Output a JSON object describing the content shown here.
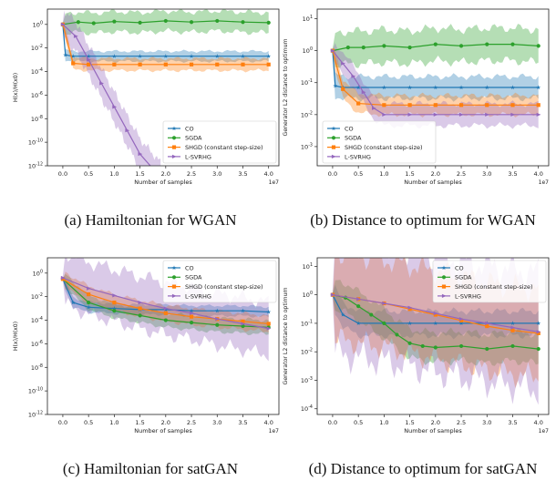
{
  "charts": {
    "a": {
      "caption": "(a) Hamiltonian for WGAN"
    },
    "b": {
      "caption": "(b) Distance to optimum for WGAN"
    },
    "c": {
      "caption": "(c) Hamiltonian for satGAN"
    },
    "d": {
      "caption": "(d) Distance to optimum for satGAN"
    }
  },
  "chart_data": [
    {
      "id": "a",
      "type": "line",
      "scale_y": "log",
      "xlabel": "Number of samples",
      "x_multiplier": "1e7",
      "ylabel": "H(x)/H(x0)",
      "xlim": [
        -0.3,
        4.2
      ],
      "ylim_exp": [
        -12,
        1.3
      ],
      "xticks": [
        "0.0",
        "0.5",
        "1.0",
        "1.5",
        "2.0",
        "2.5",
        "3.0",
        "3.5",
        "4.0"
      ],
      "yticks": [
        "10^0",
        "10^-2",
        "10^-4",
        "10^-6",
        "10^-8",
        "10^-10",
        "10^-12"
      ],
      "legend_position": "lower-right",
      "series": [
        {
          "name": "CO",
          "color": "#1f77b4",
          "marker": "star",
          "x": [
            0,
            0.05,
            0.2,
            0.5,
            1,
            1.5,
            2,
            2.5,
            3,
            3.5,
            4
          ],
          "y_exp": [
            0,
            -2.6,
            -2.7,
            -2.7,
            -2.7,
            -2.7,
            -2.7,
            -2.7,
            -2.7,
            -2.7,
            -2.7
          ],
          "band": 0.5
        },
        {
          "name": "SGDA",
          "color": "#2ca02c",
          "marker": "circle",
          "x": [
            0,
            0.3,
            0.6,
            1,
            1.5,
            2,
            2.5,
            3,
            3.5,
            4
          ],
          "y_exp": [
            0,
            0.2,
            0.1,
            0.25,
            0.15,
            0.3,
            0.2,
            0.3,
            0.2,
            0.15
          ],
          "band": 1.0
        },
        {
          "name": "SHGD (constant step-size)",
          "color": "#ff7f0e",
          "marker": "square",
          "x": [
            0,
            0.2,
            0.5,
            1,
            1.5,
            2,
            2.5,
            3,
            3.5,
            4
          ],
          "y_exp": [
            0,
            -3.3,
            -3.4,
            -3.4,
            -3.4,
            -3.4,
            -3.4,
            -3.4,
            -3.4,
            -3.4
          ],
          "band": 0.6
        },
        {
          "name": "L-SVRHG",
          "color": "#9467bd",
          "marker": "tri",
          "x": [
            0,
            0.25,
            0.5,
            0.75,
            1,
            1.25,
            1.5,
            1.9
          ],
          "y_exp": [
            0,
            -1,
            -3,
            -5,
            -7,
            -9,
            -11,
            -13
          ],
          "band": 1.5
        }
      ]
    },
    {
      "id": "b",
      "type": "line",
      "scale_y": "log",
      "xlabel": "Number of samples",
      "x_multiplier": "1e7",
      "ylabel": "Generator L2 distance to optimum",
      "xlim": [
        -0.3,
        4.2
      ],
      "ylim_exp": [
        -3.6,
        1.3
      ],
      "xticks": [
        "0.0",
        "0.5",
        "1.0",
        "1.5",
        "2.0",
        "2.5",
        "3.0",
        "3.5",
        "4.0"
      ],
      "yticks": [
        "10^1",
        "10^0",
        "10^-1",
        "10^-2",
        "10^-3"
      ],
      "legend_position": "lower-left",
      "series": [
        {
          "name": "CO",
          "color": "#1f77b4",
          "marker": "star",
          "x": [
            0,
            0.05,
            0.2,
            0.5,
            1,
            1.5,
            2,
            2.5,
            3,
            3.5,
            4
          ],
          "y_exp": [
            0,
            -1.1,
            -1.15,
            -1.15,
            -1.15,
            -1.15,
            -1.15,
            -1.15,
            -1.15,
            -1.15,
            -1.15
          ],
          "band": 0.4
        },
        {
          "name": "SGDA",
          "color": "#2ca02c",
          "marker": "circle",
          "x": [
            0,
            0.3,
            0.6,
            1,
            1.5,
            2,
            2.5,
            3,
            3.5,
            4
          ],
          "y_exp": [
            0,
            0.1,
            0.1,
            0.15,
            0.1,
            0.2,
            0.15,
            0.2,
            0.2,
            0.15
          ],
          "band": 0.6
        },
        {
          "name": "SHGD (constant step-size)",
          "color": "#ff7f0e",
          "marker": "square",
          "x": [
            0,
            0.2,
            0.5,
            1,
            1.5,
            2,
            2.5,
            3,
            3.5,
            4
          ],
          "y_exp": [
            0,
            -1.2,
            -1.65,
            -1.7,
            -1.7,
            -1.7,
            -1.7,
            -1.7,
            -1.7,
            -1.7
          ],
          "band": 0.35
        },
        {
          "name": "L-SVRHG",
          "color": "#9467bd",
          "marker": "tri",
          "x": [
            0,
            0.2,
            0.4,
            0.6,
            0.8,
            1,
            1.5,
            2,
            2.5,
            3,
            3.5,
            4
          ],
          "y_exp": [
            0,
            -0.4,
            -0.8,
            -1.3,
            -1.8,
            -2,
            -2,
            -2,
            -2,
            -2,
            -2,
            -2
          ],
          "band": 0.4
        }
      ]
    },
    {
      "id": "c",
      "type": "line",
      "scale_y": "log",
      "xlabel": "Number of samples",
      "x_multiplier": "1e7",
      "ylabel": "H(x)/H(x0)",
      "xlim": [
        -0.3,
        4.2
      ],
      "ylim_exp": [
        -12,
        1.3
      ],
      "xticks": [
        "0.0",
        "0.5",
        "1.0",
        "1.5",
        "2.0",
        "2.5",
        "3.0",
        "3.5",
        "4.0"
      ],
      "yticks": [
        "10^0",
        "10^-2",
        "10^-4",
        "10^-6",
        "10^-8",
        "10^-10",
        "10^-12"
      ],
      "legend_position": "upper-right",
      "series": [
        {
          "name": "CO",
          "color": "#1f77b4",
          "marker": "star",
          "x": [
            0,
            0.2,
            0.5,
            1,
            1.5,
            2,
            2.5,
            3,
            3.5,
            4
          ],
          "y_exp": [
            -0.5,
            -2.5,
            -2.9,
            -3.0,
            -3.1,
            -3.1,
            -3.2,
            -3.2,
            -3.2,
            -3.3
          ],
          "band": 0.5
        },
        {
          "name": "SGDA",
          "color": "#2ca02c",
          "marker": "circle",
          "x": [
            0,
            0.5,
            1,
            1.5,
            2,
            2.5,
            3,
            3.5,
            4
          ],
          "y_exp": [
            -0.5,
            -2.5,
            -3.2,
            -3.6,
            -4.0,
            -4.2,
            -4.4,
            -4.5,
            -4.6
          ],
          "band": 0.7
        },
        {
          "name": "SHGD (constant step-size)",
          "color": "#ff7f0e",
          "marker": "square",
          "x": [
            0,
            0.5,
            1,
            1.5,
            2,
            2.5,
            3,
            3.5,
            4
          ],
          "y_exp": [
            -0.5,
            -1.8,
            -2.5,
            -3.0,
            -3.4,
            -3.7,
            -3.9,
            -4.1,
            -4.3
          ],
          "band": 0.8
        },
        {
          "name": "L-SVRHG",
          "color": "#9467bd",
          "marker": "tri",
          "x": [
            0,
            0.5,
            1,
            1.5,
            2,
            2.5,
            3,
            3.5,
            4
          ],
          "y_exp": [
            -0.4,
            -1.3,
            -1.9,
            -2.5,
            -3.0,
            -3.4,
            -3.9,
            -4.3,
            -4.7
          ],
          "band": 2.6
        }
      ]
    },
    {
      "id": "d",
      "type": "line",
      "scale_y": "log",
      "xlabel": "Number of samples",
      "x_multiplier": "1e7",
      "ylabel": "Generator L2 distance to optimum",
      "xlim": [
        -0.3,
        4.2
      ],
      "ylim_exp": [
        -4.2,
        1.3
      ],
      "xticks": [
        "0.0",
        "0.5",
        "1.0",
        "1.5",
        "2.0",
        "2.5",
        "3.0",
        "3.5",
        "4.0"
      ],
      "yticks": [
        "10^1",
        "10^0",
        "10^-1",
        "10^-2",
        "10^-3",
        "10^-4"
      ],
      "legend_position": "upper-right",
      "series": [
        {
          "name": "CO",
          "color": "#1f77b4",
          "marker": "star",
          "x": [
            0,
            0.2,
            0.5,
            1,
            1.5,
            2,
            2.5,
            3,
            3.5,
            4
          ],
          "y_exp": [
            0,
            -0.7,
            -1.0,
            -1.0,
            -1.0,
            -1.0,
            -1.0,
            -1.0,
            -1.0,
            -1.0
          ],
          "band": 0.5
        },
        {
          "name": "SGDA",
          "color": "#2ca02c",
          "marker": "circle",
          "x": [
            0,
            0.25,
            0.5,
            0.75,
            1,
            1.25,
            1.5,
            1.75,
            2,
            2.5,
            3,
            3.5,
            4
          ],
          "y_exp": [
            0,
            -0.1,
            -0.4,
            -0.7,
            -1.0,
            -1.4,
            -1.7,
            -1.8,
            -1.85,
            -1.8,
            -1.9,
            -1.8,
            -1.9
          ],
          "band": 0.6
        },
        {
          "name": "SHGD (constant step-size)",
          "color": "#ff7f0e",
          "marker": "square",
          "x": [
            0,
            0.5,
            1,
            1.5,
            2,
            2.5,
            3,
            3.5,
            4
          ],
          "y_exp": [
            0,
            -0.15,
            -0.3,
            -0.5,
            -0.7,
            -0.9,
            -1.1,
            -1.25,
            -1.35
          ],
          "band": 1.8
        },
        {
          "name": "L-SVRHG",
          "color": "#9467bd",
          "marker": "tri",
          "x": [
            0,
            0.5,
            1,
            1.5,
            2,
            2.5,
            3,
            3.5,
            4
          ],
          "y_exp": [
            0,
            -0.15,
            -0.3,
            -0.45,
            -0.65,
            -0.85,
            -1.0,
            -1.15,
            -1.3
          ],
          "band": 2.4
        }
      ]
    }
  ]
}
